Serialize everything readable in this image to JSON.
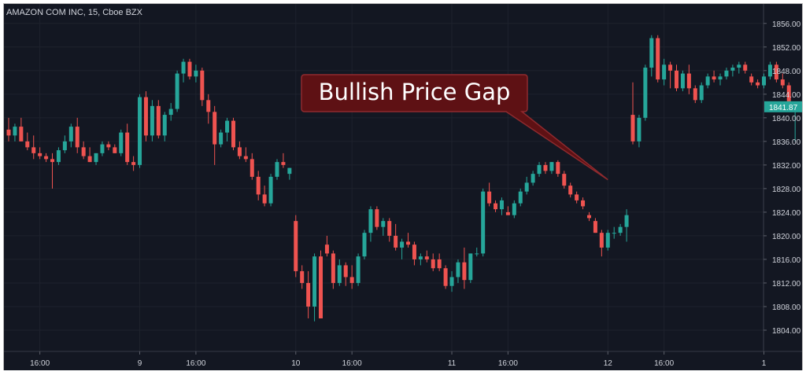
{
  "chart_data": {
    "type": "candlestick",
    "title": "AMAZON COM INC, 15, Cboe BZX",
    "y_ticks": [
      1856,
      1852,
      1848,
      1844,
      1840,
      1836,
      1832,
      1828,
      1824,
      1820,
      1816,
      1812,
      1808,
      1804
    ],
    "y_tick_labels": [
      "1856.00",
      "1852.00",
      "1848.00",
      "1844.00",
      "1840.00",
      "1836.00",
      "1832.00",
      "1828.00",
      "1824.00",
      "1820.00",
      "1816.00",
      "1812.00",
      "1808.00",
      "1804.00"
    ],
    "ylim": [
      1800.4,
      1859.3
    ],
    "x_tick_labels": [
      {
        "bar": 5,
        "label": "16:00"
      },
      {
        "bar": 21,
        "label": "9"
      },
      {
        "bar": 30,
        "label": "16:00"
      },
      {
        "bar": 46,
        "label": "10"
      },
      {
        "bar": 55,
        "label": "16:00"
      },
      {
        "bar": 71,
        "label": "11"
      },
      {
        "bar": 80,
        "label": "16:00"
      },
      {
        "bar": 96,
        "label": "12"
      },
      {
        "bar": 105,
        "label": "16:00"
      },
      {
        "bar": 121,
        "label": "1"
      }
    ],
    "last_price_label": "1841.87",
    "last_price": 1841.87,
    "grid": true,
    "colors": {
      "background": "#131722",
      "up": "#26a69a",
      "down": "#ef5350",
      "grid": "#1e222d",
      "text": "#d1d4dc",
      "annotation_fill": "#5e1114",
      "annotation_stroke": "#8e2a2e"
    },
    "annotation": {
      "text": "Bullish Price Gap",
      "point_bar": 96,
      "point_price": 1829.5
    },
    "candles": [
      [
        1838,
        1840,
        1836,
        1837
      ],
      [
        1837,
        1839,
        1836,
        1838.5
      ],
      [
        1838.5,
        1840,
        1836,
        1836
      ],
      [
        1836,
        1837.5,
        1834.5,
        1835
      ],
      [
        1835,
        1837,
        1833,
        1834
      ],
      [
        1834,
        1835,
        1833,
        1833.5
      ],
      [
        1833.5,
        1834,
        1832.5,
        1833
      ],
      [
        1833,
        1834,
        1828,
        1832.5
      ],
      [
        1832.5,
        1835,
        1832,
        1834.5
      ],
      [
        1834.5,
        1837,
        1834,
        1836
      ],
      [
        1836,
        1839,
        1835,
        1838.5
      ],
      [
        1838.5,
        1840,
        1834,
        1835
      ],
      [
        1835,
        1836,
        1833,
        1833.5
      ],
      [
        1833.5,
        1835,
        1832.5,
        1832.5
      ],
      [
        1832.5,
        1834,
        1832,
        1834
      ],
      [
        1834,
        1836,
        1833.5,
        1835.5
      ],
      [
        1835.5,
        1836,
        1834.5,
        1835
      ],
      [
        1835,
        1835.5,
        1834,
        1834
      ],
      [
        1834,
        1838,
        1833.5,
        1837.5
      ],
      [
        1837.5,
        1839,
        1832,
        1832.5
      ],
      [
        1832.5,
        1833.5,
        1831,
        1832
      ],
      [
        1832,
        1844,
        1831.5,
        1843.5
      ],
      [
        1843.5,
        1844.5,
        1836,
        1837
      ],
      [
        1837,
        1843,
        1836,
        1842
      ],
      [
        1842,
        1843,
        1836.5,
        1837
      ],
      [
        1837,
        1841,
        1836,
        1840.5
      ],
      [
        1840.5,
        1842.5,
        1839.5,
        1841.5
      ],
      [
        1841.5,
        1848,
        1841,
        1847.5
      ],
      [
        1847.5,
        1850,
        1846,
        1849.5
      ],
      [
        1849.5,
        1850,
        1846.5,
        1847
      ],
      [
        1847,
        1849,
        1846,
        1848
      ],
      [
        1848,
        1848.5,
        1842,
        1843
      ],
      [
        1843,
        1844,
        1839,
        1841
      ],
      [
        1841,
        1842,
        1832,
        1835.5
      ],
      [
        1835.5,
        1838,
        1835,
        1837.5
      ],
      [
        1837.5,
        1840,
        1836,
        1839.5
      ],
      [
        1839.5,
        1840,
        1834.5,
        1835
      ],
      [
        1835,
        1836,
        1833,
        1833.5
      ],
      [
        1833.5,
        1835,
        1832.5,
        1833
      ],
      [
        1833,
        1834,
        1829.5,
        1830
      ],
      [
        1830,
        1831,
        1826,
        1827
      ],
      [
        1827,
        1828.5,
        1825,
        1825.5
      ],
      [
        1825.5,
        1830.5,
        1825,
        1830
      ],
      [
        1830,
        1833,
        1829.5,
        1832.5
      ],
      [
        1832.5,
        1834,
        1831.5,
        1832
      ],
      [
        1830.5,
        1831.5,
        1829.5,
        1831.5
      ],
      [
        1822.5,
        1823.5,
        1813,
        1814
      ],
      [
        1814,
        1815,
        1811,
        1812
      ],
      [
        1812,
        1814,
        1806,
        1808
      ],
      [
        1808,
        1817,
        1805.5,
        1816.5
      ],
      [
        1816.5,
        1817.5,
        1806,
        1806
      ],
      [
        1818.5,
        1820,
        1816.5,
        1817
      ],
      [
        1817,
        1817.5,
        1811,
        1812
      ],
      [
        1812,
        1816,
        1811.5,
        1815
      ],
      [
        1815,
        1815.5,
        1811.5,
        1813
      ],
      [
        1813,
        1815,
        1811,
        1812
      ],
      [
        1812,
        1817,
        1811.5,
        1816.5
      ],
      [
        1816.5,
        1821,
        1816,
        1820.5
      ],
      [
        1820.5,
        1825,
        1819,
        1824.5
      ],
      [
        1824.5,
        1825,
        1821,
        1821.5
      ],
      [
        1821.5,
        1823,
        1820,
        1822.5
      ],
      [
        1822.5,
        1823,
        1819,
        1820
      ],
      [
        1820,
        1822,
        1817.5,
        1818
      ],
      [
        1818,
        1819.5,
        1816,
        1819
      ],
      [
        1819,
        1820.5,
        1818,
        1818.5
      ],
      [
        1818.5,
        1819,
        1815,
        1816
      ],
      [
        1816,
        1817,
        1815,
        1816.5
      ],
      [
        1816.5,
        1817.5,
        1815.5,
        1816
      ],
      [
        1816,
        1817,
        1814,
        1814.5
      ],
      [
        1816,
        1817,
        1814,
        1814.5
      ],
      [
        1814.5,
        1815,
        1811,
        1811.5
      ],
      [
        1811.5,
        1814,
        1810.5,
        1813
      ],
      [
        1813,
        1816,
        1812,
        1815.5
      ],
      [
        1815.5,
        1818,
        1811,
        1812.5
      ],
      [
        1812.5,
        1817,
        1812,
        1817
      ],
      [
        1817,
        1818,
        1816.5,
        1817
      ],
      [
        1817,
        1828,
        1816.5,
        1827.5
      ],
      [
        1827.5,
        1829,
        1825,
        1825.5
      ],
      [
        1825.5,
        1826,
        1824,
        1824.5
      ],
      [
        1824.5,
        1826.5,
        1823.5,
        1826
      ],
      [
        1824,
        1825,
        1823.5,
        1823.5
      ],
      [
        1823.5,
        1826,
        1823,
        1825.5
      ],
      [
        1825.5,
        1828,
        1825,
        1827.5
      ],
      [
        1827.5,
        1830,
        1827,
        1829
      ],
      [
        1829,
        1831,
        1828.5,
        1830.5
      ],
      [
        1830.5,
        1832.5,
        1830,
        1832
      ],
      [
        1832,
        1832.5,
        1830.5,
        1831
      ],
      [
        1831,
        1832.5,
        1830.5,
        1832.5
      ],
      [
        1832.5,
        1832.8,
        1830,
        1830.5
      ],
      [
        1830.5,
        1831,
        1828,
        1828.5
      ],
      [
        1828.5,
        1829,
        1826.5,
        1827
      ],
      [
        1827,
        1827.5,
        1825.5,
        1826
      ],
      [
        1826,
        1826.5,
        1824.5,
        1825
      ],
      [
        1823.5,
        1824,
        1822.5,
        1823
      ],
      [
        1822.5,
        1823,
        1820.5,
        1820.5
      ],
      [
        1820.5,
        1821,
        1816.5,
        1818
      ],
      [
        1818,
        1821,
        1817.5,
        1820.5
      ],
      [
        1820.5,
        1821.5,
        1819.5,
        1820.5
      ],
      [
        1820.5,
        1822,
        1820,
        1821.5
      ],
      [
        1821.5,
        1824.5,
        1819,
        1823.5
      ],
      [
        1840.5,
        1846,
        1835.5,
        1836
      ],
      [
        1836,
        1840.5,
        1835,
        1840
      ],
      [
        1840,
        1849,
        1839.5,
        1848.5
      ],
      [
        1848.5,
        1854,
        1847,
        1853.5
      ],
      [
        1853.5,
        1854,
        1846,
        1846.5
      ],
      [
        1846.5,
        1850,
        1845.5,
        1849
      ],
      [
        1849,
        1849.5,
        1845,
        1848
      ],
      [
        1848,
        1849,
        1844.5,
        1845
      ],
      [
        1845,
        1848,
        1844.5,
        1847.5
      ],
      [
        1847.5,
        1849,
        1844,
        1845
      ],
      [
        1845,
        1845.5,
        1842.5,
        1843
      ],
      [
        1843,
        1846,
        1842.5,
        1845.5
      ],
      [
        1845.5,
        1847.5,
        1845,
        1847
      ],
      [
        1847,
        1848,
        1846,
        1846.5
      ],
      [
        1846.5,
        1847.5,
        1845.5,
        1847
      ],
      [
        1847,
        1848.5,
        1846.5,
        1848
      ],
      [
        1848,
        1849,
        1847,
        1848.5
      ],
      [
        1848.5,
        1849.5,
        1847.5,
        1849
      ],
      [
        1849,
        1849.5,
        1847.5,
        1848
      ],
      [
        1847,
        1847.5,
        1845.5,
        1846
      ],
      [
        1846,
        1846.5,
        1845,
        1845.5
      ],
      [
        1845.5,
        1847.5,
        1845,
        1847
      ],
      [
        1847,
        1849.5,
        1846.5,
        1849
      ],
      [
        1849,
        1849.5,
        1846,
        1846.5
      ],
      [
        1846.5,
        1847.5,
        1845,
        1845.5
      ],
      [
        1845.5,
        1846,
        1842,
        1842.5
      ],
      [
        1841,
        1842,
        1836,
        1841.87
      ]
    ]
  }
}
